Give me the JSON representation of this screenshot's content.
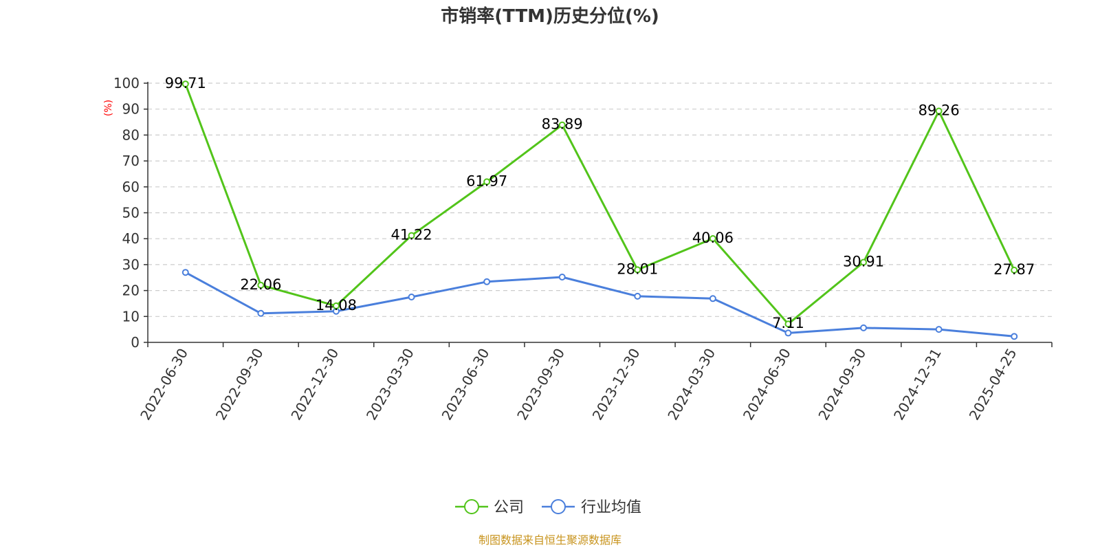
{
  "chart_data": {
    "type": "line",
    "title": "市销率(TTM)历史分位(%)",
    "ylabel": "(%)",
    "ylim": [
      0,
      100
    ],
    "yticks": [
      0,
      10,
      20,
      30,
      40,
      50,
      60,
      70,
      80,
      90,
      100
    ],
    "grid": "horizontal-dashed",
    "legend_position": "bottom-center",
    "categories": [
      "2022-06-30",
      "2022-09-30",
      "2022-12-30",
      "2023-03-30",
      "2023-06-30",
      "2023-09-30",
      "2023-12-30",
      "2024-03-30",
      "2024-06-30",
      "2024-09-30",
      "2024-12-31",
      "2025-04-25"
    ],
    "series": [
      {
        "name": "公司",
        "color": "#52c41a",
        "values": [
          99.71,
          22.06,
          14.08,
          41.22,
          61.97,
          83.89,
          28.01,
          40.06,
          7.11,
          30.91,
          89.26,
          27.87
        ],
        "labels": [
          "99.71",
          "22.06",
          "14.08",
          "41.22",
          "61.97",
          "83.89",
          "28.01",
          "40.06",
          "7.11",
          "30.91",
          "89.26",
          "27.87"
        ]
      },
      {
        "name": "行业均值",
        "color": "#4a7fdc",
        "values": [
          27,
          11.2,
          12,
          17.5,
          23.4,
          25.2,
          17.8,
          16.9,
          3.6,
          5.6,
          5.0,
          2.3
        ]
      }
    ],
    "source": "制图数据来自恒生聚源数据库"
  }
}
